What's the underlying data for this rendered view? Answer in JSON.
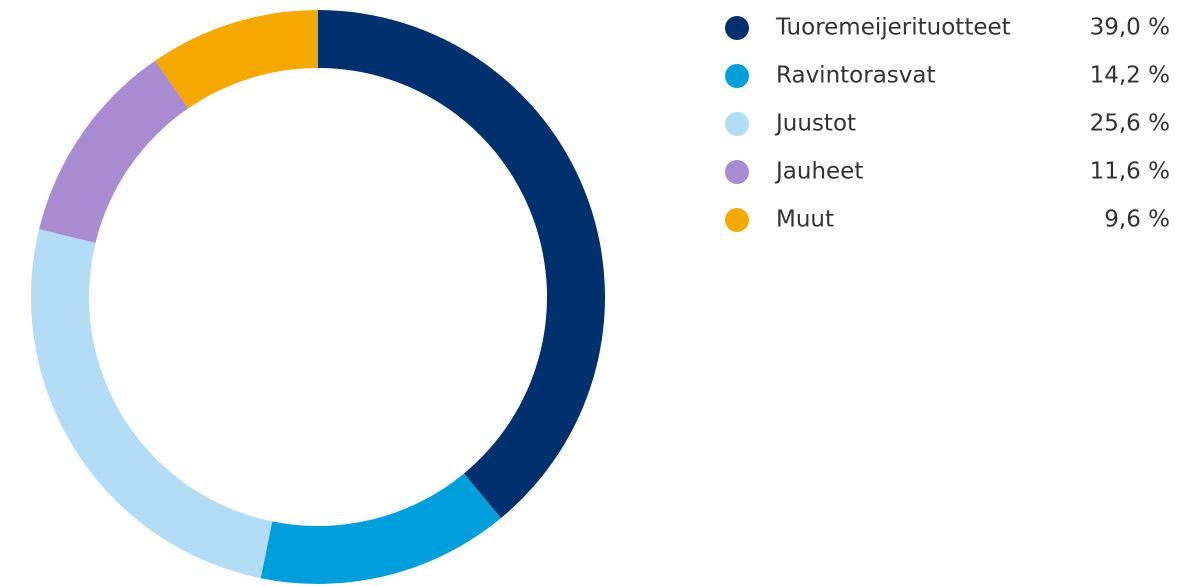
{
  "chart_data": {
    "type": "donut",
    "categories": [
      "Tuoremeijerituotteet",
      "Ravintorasvat",
      "Juustot",
      "Jauheet",
      "Muut"
    ],
    "values": [
      39.0,
      14.2,
      25.6,
      11.6,
      9.6
    ],
    "value_labels": [
      "39,0 %",
      "14,2 %",
      "25,6 %",
      "11,6 %",
      "9,6 %"
    ],
    "colors": [
      "#00306e",
      "#009fdc",
      "#b3dcf7",
      "#a88bd0",
      "#f5a800"
    ]
  }
}
